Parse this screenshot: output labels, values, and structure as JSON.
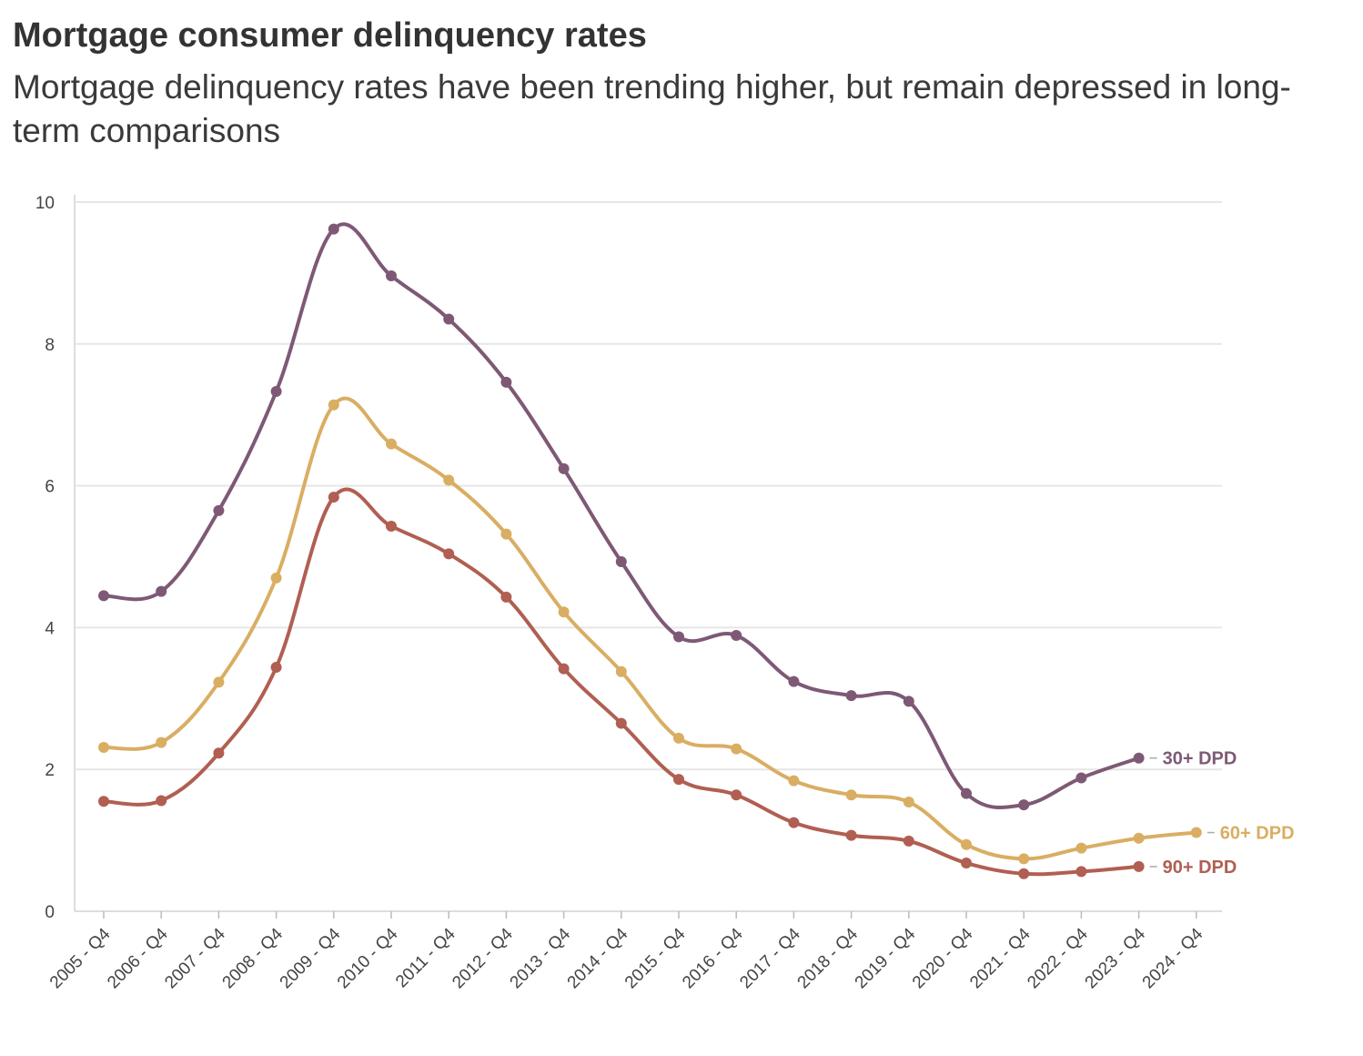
{
  "title": "Mortgage consumer delinquency rates",
  "subtitle": "Mortgage delinquency rates have been trending higher, but remain depressed in long-term comparisons",
  "chart_data": {
    "type": "line",
    "categories": [
      "2005 - Q4",
      "2006 - Q4",
      "2007 - Q4",
      "2008 - Q4",
      "2009 - Q4",
      "2010 - Q4",
      "2011 - Q4",
      "2012 - Q4",
      "2013 - Q4",
      "2014 - Q4",
      "2015 - Q4",
      "2016 - Q4",
      "2017 - Q4",
      "2018 - Q4",
      "2019 - Q4",
      "2020 - Q4",
      "2021 - Q4",
      "2022 - Q4",
      "2023 - Q4",
      "2024 - Q4"
    ],
    "series": [
      {
        "name": "30+ DPD",
        "color": "#7e5975",
        "values": [
          4.45,
          4.51,
          5.65,
          7.33,
          9.62,
          8.96,
          8.35,
          7.46,
          6.24,
          4.93,
          3.87,
          3.89,
          3.24,
          3.04,
          2.96,
          1.66,
          1.5,
          1.88,
          2.16,
          null
        ]
      },
      {
        "name": "60+ DPD",
        "color": "#d9ae63",
        "values": [
          2.31,
          2.38,
          3.23,
          4.7,
          7.14,
          6.59,
          6.08,
          5.32,
          4.22,
          3.38,
          2.44,
          2.29,
          1.84,
          1.64,
          1.54,
          0.94,
          0.74,
          0.89,
          1.03,
          1.11
        ]
      },
      {
        "name": "90+ DPD",
        "color": "#b05f52",
        "values": [
          1.55,
          1.56,
          2.23,
          3.44,
          5.84,
          5.43,
          5.04,
          4.43,
          3.42,
          2.65,
          1.86,
          1.64,
          1.25,
          1.07,
          0.99,
          0.68,
          0.53,
          0.56,
          0.63,
          null
        ]
      }
    ],
    "yticks": [
      0,
      2,
      4,
      6,
      8,
      10
    ],
    "ylim": [
      0,
      10
    ],
    "xlabel": "",
    "ylabel": "",
    "grid": true,
    "legend": "direct-labels-at-line-ends"
  }
}
